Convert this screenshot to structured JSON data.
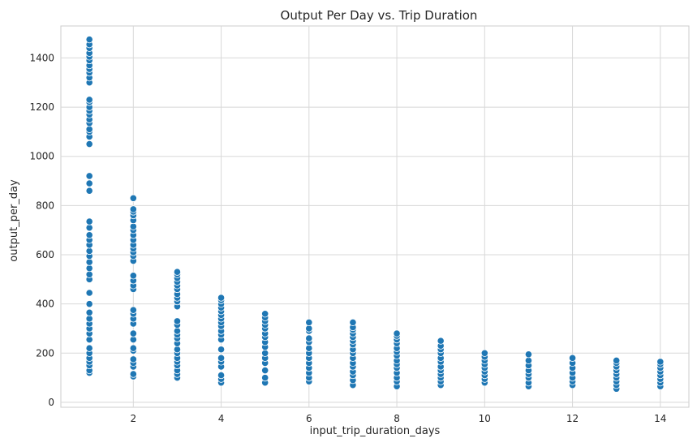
{
  "chart_data": {
    "type": "scatter",
    "title": "Output Per Day vs. Trip Duration",
    "xlabel": "input_trip_duration_days",
    "ylabel": "output_per_day",
    "xlim": [
      0.35,
      14.65
    ],
    "ylim": [
      -20,
      1530
    ],
    "x_ticks": [
      2,
      4,
      6,
      8,
      10,
      12,
      14
    ],
    "y_ticks": [
      0,
      200,
      400,
      600,
      800,
      1000,
      1200,
      1400
    ],
    "grid": true,
    "style": "seaborn-whitegrid",
    "marker_color": "#1f77b4",
    "groups": [
      {
        "x": 1,
        "y": [
          120,
          130,
          150,
          165,
          180,
          200,
          220,
          255,
          280,
          300,
          320,
          340,
          365,
          400,
          445,
          500,
          520,
          545,
          570,
          595,
          615,
          640,
          660,
          680,
          710,
          735,
          860,
          890,
          920,
          1050,
          1080,
          1100,
          1110,
          1135,
          1150,
          1170,
          1185,
          1200,
          1220,
          1230,
          1300,
          1320,
          1340,
          1355,
          1370,
          1390,
          1405,
          1420,
          1440,
          1455,
          1475
        ]
      },
      {
        "x": 2,
        "y": [
          105,
          115,
          145,
          160,
          175,
          210,
          220,
          255,
          280,
          320,
          340,
          360,
          375,
          460,
          475,
          495,
          515,
          575,
          595,
          610,
          625,
          640,
          660,
          680,
          700,
          715,
          740,
          760,
          775,
          785,
          830
        ]
      },
      {
        "x": 3,
        "y": [
          100,
          115,
          130,
          150,
          165,
          180,
          200,
          215,
          240,
          260,
          275,
          290,
          315,
          330,
          390,
          410,
          425,
          440,
          460,
          475,
          490,
          505,
          520,
          530
        ]
      },
      {
        "x": 4,
        "y": [
          80,
          95,
          110,
          145,
          165,
          180,
          215,
          255,
          275,
          290,
          310,
          325,
          340,
          355,
          370,
          385,
          400,
          415,
          425
        ]
      },
      {
        "x": 5,
        "y": [
          80,
          100,
          130,
          160,
          180,
          200,
          225,
          245,
          265,
          280,
          300,
          315,
          330,
          345,
          360
        ]
      },
      {
        "x": 6,
        "y": [
          85,
          100,
          120,
          140,
          160,
          180,
          200,
          220,
          245,
          260,
          290,
          300,
          325
        ]
      },
      {
        "x": 7,
        "y": [
          70,
          90,
          110,
          125,
          145,
          160,
          180,
          200,
          215,
          235,
          250,
          265,
          280,
          295,
          305,
          325
        ]
      },
      {
        "x": 8,
        "y": [
          65,
          85,
          100,
          120,
          140,
          155,
          170,
          190,
          205,
          220,
          240,
          255,
          270,
          280
        ]
      },
      {
        "x": 9,
        "y": [
          70,
          85,
          100,
          115,
          130,
          145,
          165,
          180,
          200,
          215,
          230,
          250
        ]
      },
      {
        "x": 10,
        "y": [
          80,
          95,
          110,
          125,
          140,
          155,
          170,
          185,
          200
        ]
      },
      {
        "x": 11,
        "y": [
          65,
          80,
          100,
          115,
          130,
          150,
          170,
          195
        ]
      },
      {
        "x": 12,
        "y": [
          70,
          85,
          100,
          120,
          140,
          160,
          180
        ]
      },
      {
        "x": 13,
        "y": [
          55,
          70,
          85,
          100,
          115,
          130,
          145,
          160,
          170
        ]
      },
      {
        "x": 14,
        "y": [
          65,
          80,
          95,
          110,
          125,
          140,
          155,
          165
        ]
      }
    ]
  }
}
